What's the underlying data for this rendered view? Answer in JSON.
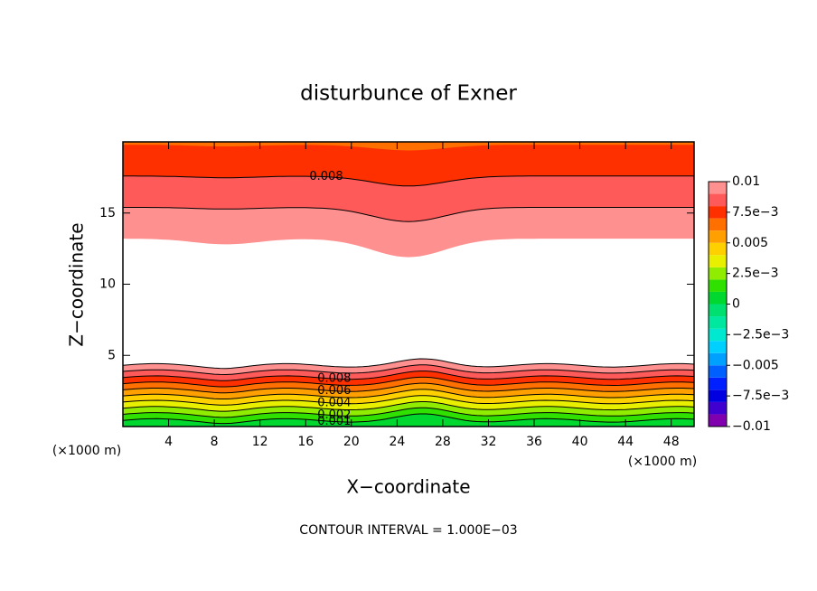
{
  "chart_data": {
    "type": "contour",
    "title": "disturbunce of Exner",
    "x_label": "X−coordinate",
    "y_label": "Z−coordinate",
    "x_unit_left": "(×1000 m)",
    "x_unit_right": "(×1000 m)",
    "footer": "CONTOUR INTERVAL = 1.000E−03",
    "xlim": [
      0,
      50
    ],
    "xticks": [
      4,
      8,
      12,
      16,
      20,
      24,
      28,
      32,
      36,
      40,
      44,
      48
    ],
    "ylim": [
      0,
      20
    ],
    "yticks": [
      5,
      10,
      15
    ],
    "zlim": [
      -0.01,
      0.01
    ],
    "zticks": [
      {
        "value": 0.01,
        "label": "0.01"
      },
      {
        "value": 0.0075,
        "label": "7.5e−3"
      },
      0.005,
      {
        "value": 0.0025,
        "label": "2.5e−3"
      },
      0,
      {
        "value": -0.0025,
        "label": "−2.5e−3"
      },
      {
        "value": -0.005,
        "label": "−0.005"
      },
      {
        "value": -0.0075,
        "label": "−7.5e−3"
      },
      {
        "value": -0.01,
        "label": "−0.01"
      }
    ],
    "colors": [
      "#8000b0",
      "#4000d0",
      "#0000e0",
      "#0020ff",
      "#0060ff",
      "#00a0ff",
      "#00d0ff",
      "#00e8d0",
      "#00e8a0",
      "#00e070",
      "#00d830",
      "#30e000",
      "#90ec00",
      "#e8f000",
      "#ffd000",
      "#ffa000",
      "#ff7000",
      "#ff3000",
      "#ff5a5a",
      "#ff9090"
    ],
    "upper_contour_labels": [
      0.008
    ],
    "lower_contour_labels": [
      0.008,
      0.006,
      0.004,
      0.002,
      0.001
    ]
  }
}
